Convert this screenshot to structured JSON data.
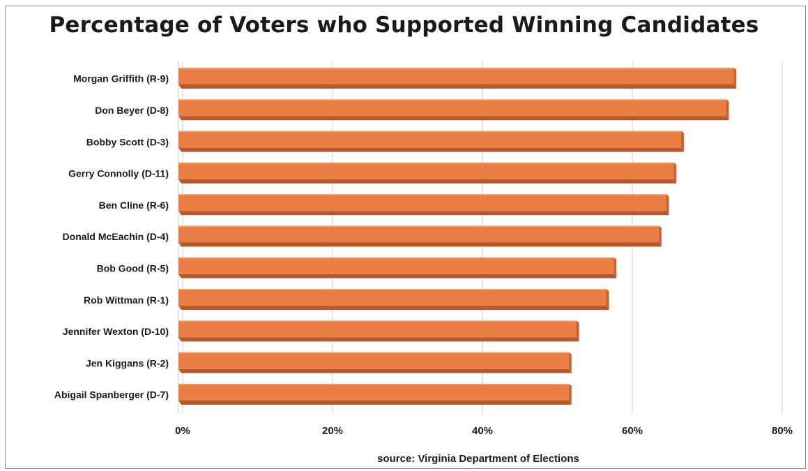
{
  "chart_data": {
    "type": "bar",
    "orientation": "horizontal",
    "title": "Percentage of Voters who Supported Winning Candidates",
    "source": "source: Virginia Department of Elections",
    "categories": [
      "Morgan Griffith (R-9)",
      "Don Beyer (D-8)",
      "Bobby Scott (D-3)",
      "Gerry Connolly (D-11)",
      "Ben Cline (R-6)",
      "Donald McEachin (D-4)",
      "Bob Good (R-5)",
      "Rob Wittman (R-1)",
      "Jennifer Wexton (D-10)",
      "Jen Kiggans (R-2)",
      "Abigail Spanberger (D-7)"
    ],
    "values": [
      73.7,
      72.7,
      66.7,
      65.7,
      64.7,
      63.7,
      57.7,
      56.7,
      52.7,
      51.7,
      51.7
    ],
    "xlim": [
      0,
      80
    ],
    "xticks": [
      0,
      20,
      40,
      60,
      80
    ],
    "xtick_labels": [
      "0%",
      "20%",
      "40%",
      "60%",
      "80%"
    ],
    "grid": true,
    "bar_color": "#e97f45",
    "bar_shadow_color": "#b5582a",
    "grid_color": "#d6d6d6"
  }
}
